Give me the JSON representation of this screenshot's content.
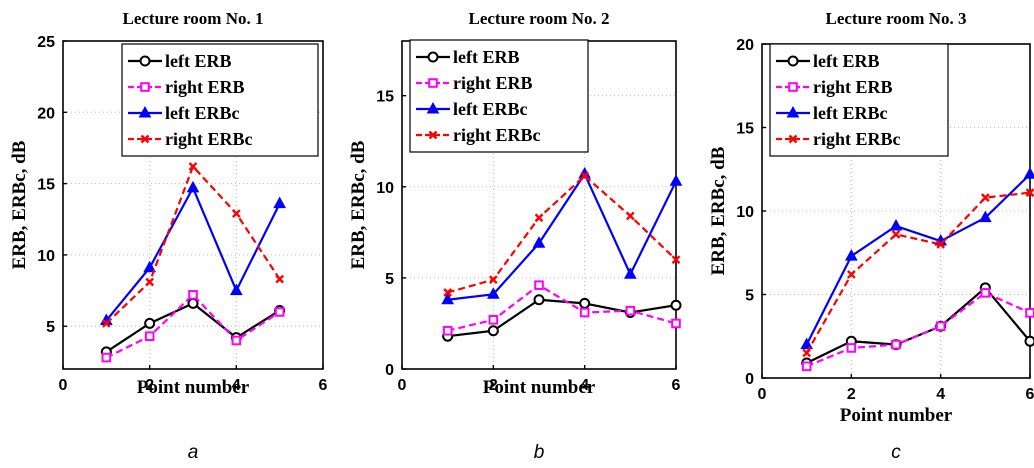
{
  "chart_data": [
    {
      "type": "line",
      "title": "Lecture room No. 1",
      "xlabel": "Point number",
      "ylabel": "ERB, ERBc, dB",
      "caption": "a",
      "xlim": [
        0,
        6
      ],
      "ylim": [
        2,
        25
      ],
      "xticks": [
        0,
        2,
        4,
        6
      ],
      "yticks": [
        5,
        10,
        15,
        20,
        25
      ],
      "grid": true,
      "legend_position": "top-right",
      "x": [
        1,
        2,
        3,
        4,
        5
      ],
      "series": [
        {
          "name": "left ERB",
          "color": "#000000",
          "marker": "circle",
          "dashed": false,
          "values": [
            3.2,
            5.2,
            6.6,
            4.2,
            6.1
          ]
        },
        {
          "name": "right ERB",
          "color": "#ff00ff",
          "marker": "square",
          "dashed": true,
          "values": [
            2.8,
            4.3,
            7.2,
            4.0,
            6.0
          ]
        },
        {
          "name": "left ERBc",
          "color": "#0000ff",
          "marker": "triangle",
          "dashed": false,
          "values": [
            5.4,
            9.1,
            14.7,
            7.5,
            13.6
          ]
        },
        {
          "name": "right ERBc",
          "color": "#ff0000",
          "marker": "x",
          "dashed": true,
          "values": [
            5.2,
            8.1,
            16.2,
            12.9,
            8.3
          ]
        }
      ]
    },
    {
      "type": "line",
      "title": "Lecture room No. 2",
      "xlabel": "Point number",
      "ylabel": "ERB, ERBc, dB",
      "caption": "b",
      "xlim": [
        0,
        6
      ],
      "ylim": [
        0,
        18
      ],
      "xticks": [
        0,
        2,
        4,
        6
      ],
      "yticks": [
        0,
        5,
        10,
        15
      ],
      "grid": true,
      "legend_position": "top-right",
      "x": [
        1,
        2,
        3,
        4,
        5,
        6
      ],
      "series": [
        {
          "name": "left ERB",
          "color": "#000000",
          "marker": "circle",
          "dashed": false,
          "values": [
            1.8,
            2.1,
            3.8,
            3.6,
            3.1,
            3.5
          ]
        },
        {
          "name": "right ERB",
          "color": "#ff00ff",
          "marker": "square",
          "dashed": true,
          "values": [
            2.1,
            2.7,
            4.6,
            3.1,
            3.2,
            2.5
          ]
        },
        {
          "name": "left ERBc",
          "color": "#0000ff",
          "marker": "triangle",
          "dashed": false,
          "values": [
            3.8,
            4.1,
            6.9,
            10.7,
            5.2,
            10.3
          ]
        },
        {
          "name": "right ERBc",
          "color": "#ff0000",
          "marker": "x",
          "dashed": true,
          "values": [
            4.2,
            4.9,
            8.3,
            10.6,
            8.4,
            6.0
          ]
        }
      ]
    },
    {
      "type": "line",
      "title": "Lecture room No. 3",
      "xlabel": "Point number",
      "ylabel": "ERB, ERBc, dB",
      "caption": "c",
      "xlim": [
        0,
        6
      ],
      "ylim": [
        0,
        20
      ],
      "xticks": [
        0,
        2,
        4,
        6
      ],
      "yticks": [
        0,
        5,
        10,
        15,
        20
      ],
      "grid": true,
      "legend_position": "top-left",
      "x": [
        1,
        2,
        3,
        4,
        5,
        6
      ],
      "series": [
        {
          "name": "left ERB",
          "color": "#000000",
          "marker": "circle",
          "dashed": false,
          "values": [
            0.9,
            2.2,
            2.0,
            3.1,
            5.4,
            2.2
          ]
        },
        {
          "name": "right ERB",
          "color": "#ff00ff",
          "marker": "square",
          "dashed": true,
          "values": [
            0.7,
            1.8,
            2.0,
            3.1,
            5.1,
            3.9
          ]
        },
        {
          "name": "left ERBc",
          "color": "#0000ff",
          "marker": "triangle",
          "dashed": false,
          "values": [
            2.0,
            7.3,
            9.1,
            8.2,
            9.6,
            12.2
          ]
        },
        {
          "name": "right ERBc",
          "color": "#ff0000",
          "marker": "x",
          "dashed": true,
          "values": [
            1.5,
            6.2,
            8.6,
            8.0,
            10.8,
            11.1
          ]
        }
      ]
    }
  ]
}
